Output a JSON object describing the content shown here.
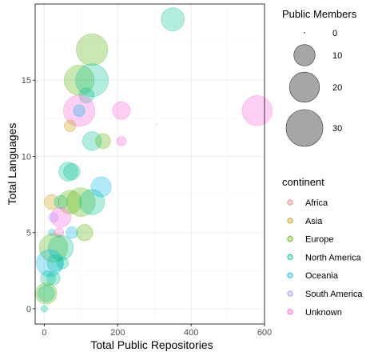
{
  "chart_data": {
    "type": "scatter",
    "xlabel": "Total Public Repositories",
    "ylabel": "Total Languages",
    "xlim": [
      -25,
      600
    ],
    "ylim": [
      -1,
      20
    ],
    "x_ticks": [
      0,
      200,
      400,
      600
    ],
    "y_ticks": [
      0,
      5,
      10,
      15
    ],
    "grid": true,
    "legend_position": "right",
    "size_legend": {
      "title": "Public Members",
      "entries": [
        {
          "label": "0",
          "value": 0
        },
        {
          "label": "10",
          "value": 10
        },
        {
          "label": "20",
          "value": 20
        },
        {
          "label": "30",
          "value": 30
        }
      ]
    },
    "color_legend": {
      "title": "continent",
      "entries": [
        {
          "label": "Africa",
          "color": "#F8766D"
        },
        {
          "label": "Asia",
          "color": "#C49A00"
        },
        {
          "label": "Europe",
          "color": "#53B400"
        },
        {
          "label": "North America",
          "color": "#00C094"
        },
        {
          "label": "Oceania",
          "color": "#00B6EB"
        },
        {
          "label": "South America",
          "color": "#A58AFF"
        },
        {
          "label": "Unknown",
          "color": "#FB61D7"
        }
      ]
    },
    "points": [
      {
        "x": 350,
        "y": 19,
        "members": 12,
        "continent": "North America"
      },
      {
        "x": 130,
        "y": 17,
        "members": 22,
        "continent": "Europe"
      },
      {
        "x": 95,
        "y": 15,
        "members": 20,
        "continent": "Europe"
      },
      {
        "x": 130,
        "y": 15,
        "members": 24,
        "continent": "North America"
      },
      {
        "x": 115,
        "y": 14,
        "members": 5,
        "continent": "North America"
      },
      {
        "x": 580,
        "y": 13,
        "members": 20,
        "continent": "Unknown"
      },
      {
        "x": 95,
        "y": 13,
        "members": 22,
        "continent": "Unknown"
      },
      {
        "x": 210,
        "y": 13,
        "members": 7,
        "continent": "Unknown"
      },
      {
        "x": 95,
        "y": 13,
        "members": 3,
        "continent": "Oceania"
      },
      {
        "x": 70,
        "y": 12,
        "members": 3,
        "continent": "Asia"
      },
      {
        "x": 305,
        "y": 12.1,
        "members": 0,
        "continent": "South America"
      },
      {
        "x": 130,
        "y": 11,
        "members": 8,
        "continent": "North America"
      },
      {
        "x": 160,
        "y": 11,
        "members": 5,
        "continent": "Europe"
      },
      {
        "x": 210,
        "y": 11,
        "members": 2,
        "continent": "Unknown"
      },
      {
        "x": 65,
        "y": 9,
        "members": 8,
        "continent": "North America"
      },
      {
        "x": 75,
        "y": 9,
        "members": 6,
        "continent": "North America"
      },
      {
        "x": 155,
        "y": 8,
        "members": 9,
        "continent": "Oceania"
      },
      {
        "x": 20,
        "y": 7,
        "members": 5,
        "continent": "Asia"
      },
      {
        "x": 45,
        "y": 7,
        "members": 4,
        "continent": "North America"
      },
      {
        "x": 70,
        "y": 7,
        "members": 12,
        "continent": "Europe"
      },
      {
        "x": 100,
        "y": 7,
        "members": 18,
        "continent": "Europe"
      },
      {
        "x": 130,
        "y": 7,
        "members": 14,
        "continent": "North America"
      },
      {
        "x": 25,
        "y": 6,
        "members": 2,
        "continent": "South America"
      },
      {
        "x": 45,
        "y": 6,
        "members": 9,
        "continent": "Unknown"
      },
      {
        "x": 20,
        "y": 5,
        "members": 1,
        "continent": "Oceania"
      },
      {
        "x": 40,
        "y": 5,
        "members": 2,
        "continent": "Unknown"
      },
      {
        "x": 75,
        "y": 5,
        "members": 3,
        "continent": "Oceania"
      },
      {
        "x": 110,
        "y": 5,
        "members": 6,
        "continent": "Europe"
      },
      {
        "x": 25,
        "y": 4,
        "members": 18,
        "continent": "Europe"
      },
      {
        "x": 45,
        "y": 4,
        "members": 14,
        "continent": "North America"
      },
      {
        "x": 15,
        "y": 3,
        "members": 16,
        "continent": "Oceania"
      },
      {
        "x": 30,
        "y": 3,
        "members": 6,
        "continent": "North America"
      },
      {
        "x": 50,
        "y": 3,
        "members": 3,
        "continent": "North America"
      },
      {
        "x": 10,
        "y": 2,
        "members": 5,
        "continent": "North America"
      },
      {
        "x": 25,
        "y": 2,
        "members": 4,
        "continent": "North America"
      },
      {
        "x": 5,
        "y": 1,
        "members": 10,
        "continent": "Europe"
      },
      {
        "x": 5,
        "y": 1,
        "members": 6,
        "continent": "North America"
      },
      {
        "x": 0,
        "y": 0,
        "members": 1,
        "continent": "North America"
      }
    ]
  }
}
